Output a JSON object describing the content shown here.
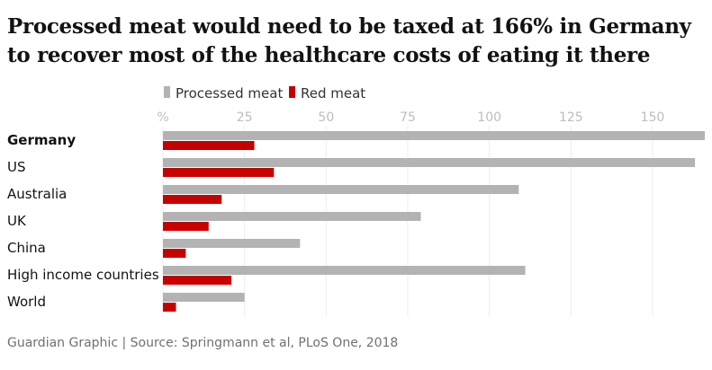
{
  "title": "Processed meat would need to be taxed at 166% in Germany to recover most of the healthcare costs of eating it there",
  "source": "Guardian Graphic | Source: Springmann et al, PLoS One, 2018",
  "colors": {
    "processed": "#b3b3b3",
    "red": "#c70000"
  },
  "chart_data": {
    "type": "bar",
    "orientation": "horizontal",
    "title": "Processed meat would need to be taxed at 166% in Germany to recover most of the healthcare costs of eating it there",
    "xlabel": "",
    "ylabel": "",
    "xlim": [
      0,
      166
    ],
    "grid": true,
    "legend_position": "top",
    "tick_values": [
      0,
      25,
      50,
      75,
      100,
      125,
      150
    ],
    "tick_labels": [
      "%",
      "25",
      "50",
      "75",
      "100",
      "125",
      "150"
    ],
    "categories": [
      "Germany",
      "US",
      "Australia",
      "UK",
      "China",
      "High income countries",
      "World"
    ],
    "highlight_category": "Germany",
    "series": [
      {
        "name": "Processed meat",
        "values": [
          166,
          163,
          109,
          79,
          42,
          111,
          25
        ]
      },
      {
        "name": "Red meat",
        "values": [
          28,
          34,
          18,
          14,
          7,
          21,
          4
        ]
      }
    ]
  }
}
